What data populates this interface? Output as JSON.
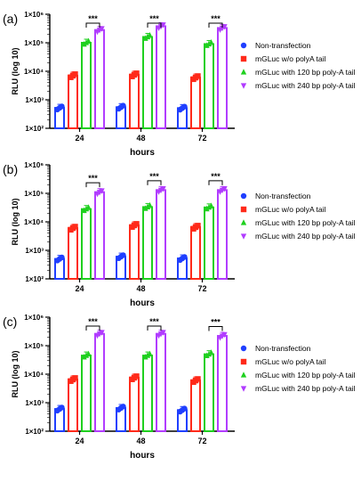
{
  "chart_data": [
    {
      "type": "bar",
      "panel_label": "(a)",
      "categories": [
        "24",
        "48",
        "72"
      ],
      "xlabel": "hours",
      "ylabel": "RLU (log 10)",
      "yscale": "log",
      "ylim": [
        100,
        1000000
      ],
      "yticks": [
        "1×10²",
        "1×10³",
        "1×10⁴",
        "1×10⁵",
        "1×10⁶"
      ],
      "legend_position": "right",
      "significance": "***",
      "series": [
        {
          "name": "Non-transfection",
          "color": "#1f3fff",
          "marker": "circle",
          "values": [
            520,
            550,
            510
          ]
        },
        {
          "name": "mGLuc w/o polyA tail",
          "color": "#ff2a1a",
          "marker": "square",
          "values": [
            7000,
            7500,
            6000
          ]
        },
        {
          "name": "mGLuc with 120 bp poly-A tail",
          "color": "#1fd01f",
          "marker": "triangle-up",
          "values": [
            100000,
            160000,
            90000
          ]
        },
        {
          "name": "mGLuc with 240 bp poly-A tail",
          "color": "#b13cff",
          "marker": "triangle-down",
          "values": [
            280000,
            380000,
            330000
          ]
        }
      ]
    },
    {
      "type": "bar",
      "panel_label": "(b)",
      "categories": [
        "24",
        "48",
        "72"
      ],
      "xlabel": "hours",
      "ylabel": "RLU (log 10)",
      "yscale": "log",
      "ylim": [
        100,
        1000000
      ],
      "yticks": [
        "1×10²",
        "1×10³",
        "1×10⁴",
        "1×10⁵",
        "1×10⁶"
      ],
      "legend_position": "right",
      "significance": "***",
      "series": [
        {
          "name": "Non-transfection",
          "color": "#1f3fff",
          "marker": "circle",
          "values": [
            500,
            600,
            520
          ]
        },
        {
          "name": "mGLuc w/o polyA tail",
          "color": "#ff2a1a",
          "marker": "square",
          "values": [
            6000,
            7500,
            6500
          ]
        },
        {
          "name": "mGLuc with 120 bp poly-A tail",
          "color": "#1fd01f",
          "marker": "triangle-up",
          "values": [
            28000,
            33000,
            32000
          ]
        },
        {
          "name": "mGLuc with 240 bp poly-A tail",
          "color": "#b13cff",
          "marker": "triangle-down",
          "values": [
            110000,
            130000,
            130000
          ]
        }
      ]
    },
    {
      "type": "bar",
      "panel_label": "(c)",
      "categories": [
        "24",
        "48",
        "72"
      ],
      "xlabel": "hours",
      "ylabel": "RLU (log 10)",
      "yscale": "log",
      "ylim": [
        100,
        1000000
      ],
      "yticks": [
        "1×10²",
        "1×10³",
        "1×10⁴",
        "1×10⁵",
        "1×10⁶"
      ],
      "legend_position": "right",
      "significance": "***",
      "series": [
        {
          "name": "Non-transfection",
          "color": "#1f3fff",
          "marker": "circle",
          "values": [
            600,
            650,
            550
          ]
        },
        {
          "name": "mGLuc w/o polyA tail",
          "color": "#ff2a1a",
          "marker": "square",
          "values": [
            6500,
            7500,
            6000
          ]
        },
        {
          "name": "mGLuc with 120 bp poly-A tail",
          "color": "#1fd01f",
          "marker": "triangle-up",
          "values": [
            45000,
            45000,
            50000
          ]
        },
        {
          "name": "mGLuc with 240 bp poly-A tail",
          "color": "#b13cff",
          "marker": "triangle-down",
          "values": [
            260000,
            260000,
            220000
          ]
        }
      ]
    }
  ]
}
